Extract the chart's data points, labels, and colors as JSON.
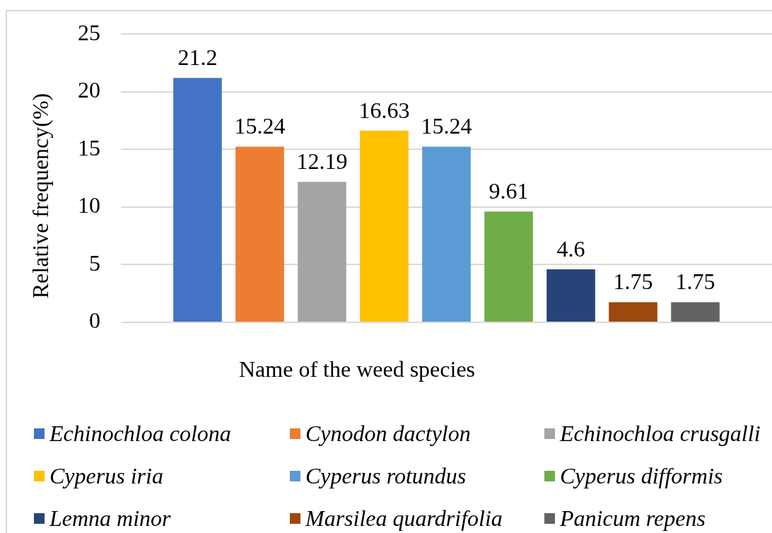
{
  "chart_data": {
    "type": "bar",
    "xlabel": "Name of the weed species",
    "ylabel": "Relative frequency(%)",
    "categories": [
      null
    ],
    "series": [
      {
        "name": "Echinochloa colona",
        "color": "#4472c4",
        "values": [
          21.2
        ]
      },
      {
        "name": "Cynodon dactylon",
        "color": "#ed7d31",
        "values": [
          15.24
        ]
      },
      {
        "name": "Echinochloa crusgalli",
        "color": "#a5a5a5",
        "values": [
          12.19
        ]
      },
      {
        "name": "Cyperus iria",
        "color": "#ffc000",
        "values": [
          16.63
        ]
      },
      {
        "name": "Cyperus rotundus",
        "color": "#5b9bd5",
        "values": [
          15.24
        ]
      },
      {
        "name": "Cyperus difformis",
        "color": "#70ad47",
        "values": [
          9.61
        ]
      },
      {
        "name": "Lemna minor",
        "color": "#264478",
        "values": [
          4.6
        ]
      },
      {
        "name": "Marsilea quardrifolia",
        "color": "#9e480e",
        "values": [
          1.75
        ]
      },
      {
        "name": "Panicum repens",
        "color": "#636363",
        "values": [
          1.75
        ]
      }
    ],
    "ylim": [
      0,
      25
    ],
    "yticks": [
      0,
      5,
      10,
      15,
      20,
      25
    ],
    "grid": "y",
    "legend": "bottom",
    "data_labels": true
  }
}
